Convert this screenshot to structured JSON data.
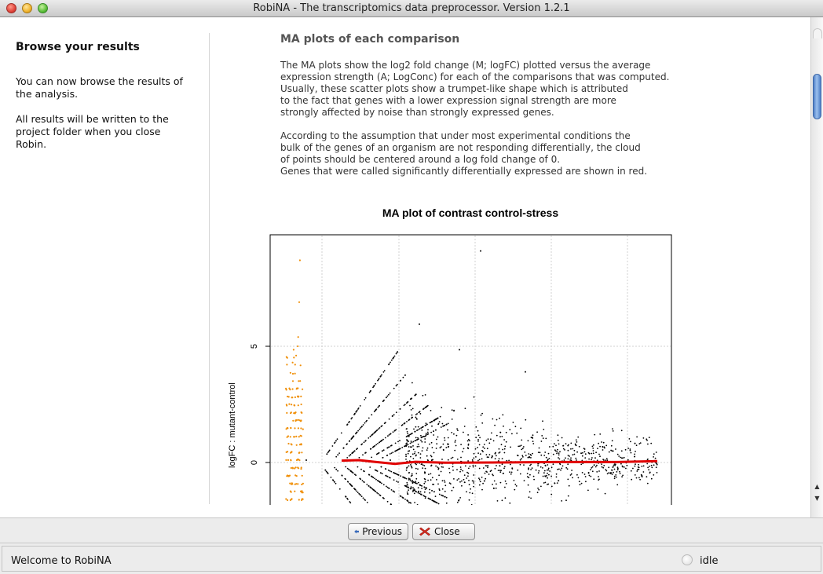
{
  "window": {
    "title": "RobiNA - The transcriptomics data preprocessor. Version 1.2.1"
  },
  "sidebar": {
    "title": "Browse your results",
    "p1": [
      "You can now browse the results of",
      "the analysis."
    ],
    "p2": [
      "All results will be written to the",
      "project folder when you close",
      "Robin."
    ]
  },
  "main": {
    "heading": "MA plots of each comparison",
    "para1": [
      "The MA plots show the log2 fold change (M; logFC) plotted versus the average",
      "expression strength (A; LogConc) for each of the comparisons that was computed.",
      "Usually, these scatter plots show a trumpet-like shape which is attributed",
      "to the fact that genes with a lower expression signal strength are more",
      "strongly affected by noise than strongly expressed genes."
    ],
    "para2": [
      "According to the assumption that under most experimental conditions the",
      "bulk of the genes of an organism are not responding differentially, the cloud",
      "of points should be centered around a log fold change of 0.",
      "Genes that were called significantly differentially expressed are shown in red."
    ]
  },
  "chart_data": {
    "type": "scatter",
    "title": "MA plot of contrast control-stress",
    "xlabel": "",
    "ylabel": "logFC : mutant-control",
    "y_ticks": [
      "5",
      "0"
    ],
    "ylim_visible": [
      -1.9,
      10
    ],
    "grid": true,
    "series": [
      {
        "color": "#f0900a",
        "marker": "points",
        "values_y": [
          8.7,
          6.9,
          5.4,
          5.0,
          4.6,
          4.3,
          4.0,
          3.6,
          3.3,
          3.0,
          2.7,
          2.3,
          2.0,
          1.6,
          1.0,
          0.0,
          -1.0,
          -1.6
        ]
      },
      {
        "color": "#000000",
        "marker": "points",
        "values_y": [
          9.1,
          6.0,
          5.0,
          4.8,
          3.9,
          3.4,
          3.0,
          2.0,
          1.0,
          0.5,
          0.0,
          -0.5,
          -1.0,
          -1.6
        ]
      },
      {
        "color": "#e00000",
        "marker": "line",
        "description_values_y": [
          0.1,
          0.1,
          -0.05,
          0.05,
          0.0,
          0.0,
          0.0,
          0.05
        ]
      }
    ]
  },
  "buttons": {
    "previous": "Previous",
    "close": "Close"
  },
  "status": {
    "message": "Welcome to RobiNA",
    "state": "idle"
  },
  "colors": {
    "accent": "#4f7fc6",
    "significant": "#e00000",
    "plot_orange": "#f0900a"
  }
}
